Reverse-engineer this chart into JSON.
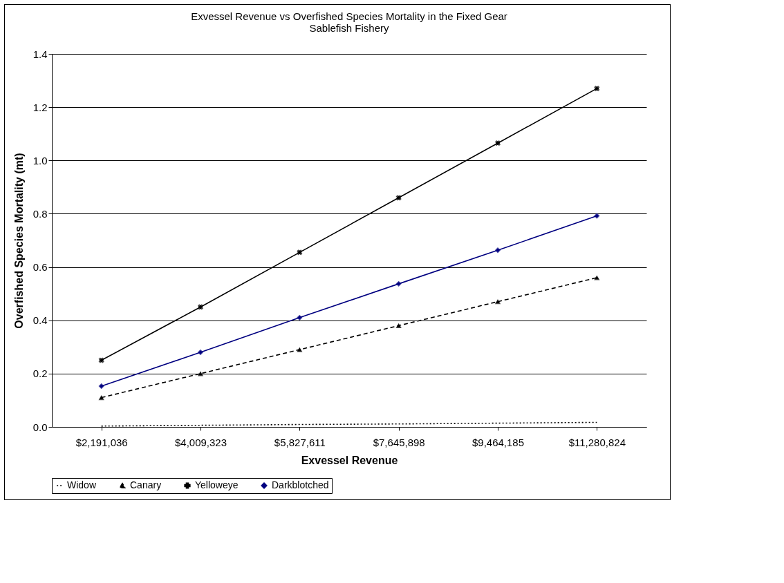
{
  "chart_data": {
    "type": "line",
    "title": "Exvessel Revenue vs Overfished Species Mortality in the Fixed Gear Sablefish Fishery",
    "xlabel": "Exvessel Revenue",
    "ylabel": "Overfished Species Mortality (mt)",
    "categories": [
      "$2,191,036",
      "$4,009,323",
      "$5,827,611",
      "$7,645,898",
      "$9,464,185",
      "$11,280,824"
    ],
    "series": [
      {
        "name": "Widow",
        "color": "#000000",
        "marker": "none",
        "line_style": "dotted",
        "values": [
          0.003,
          0.006,
          0.009,
          0.011,
          0.014,
          0.017
        ]
      },
      {
        "name": "Canary",
        "color": "#000000",
        "marker": "triangle",
        "line_style": "dashed",
        "values": [
          0.11,
          0.2,
          0.29,
          0.38,
          0.47,
          0.56
        ]
      },
      {
        "name": "Yelloweye",
        "color": "#000000",
        "marker": "cross",
        "line_style": "solid",
        "values": [
          0.25,
          0.45,
          0.655,
          0.86,
          1.065,
          1.27
        ]
      },
      {
        "name": "Darkblotched",
        "color": "#000080",
        "marker": "diamond",
        "line_style": "solid",
        "values": [
          0.153,
          0.28,
          0.41,
          0.537,
          0.663,
          0.792
        ]
      }
    ],
    "ylim": [
      0,
      1.4
    ],
    "yticks": [
      {
        "value": 0,
        "label": "0.0"
      },
      {
        "value": 0.2,
        "label": "0.2"
      },
      {
        "value": 0.4,
        "label": "0.4"
      },
      {
        "value": 0.6,
        "label": "0.6"
      },
      {
        "value": 0.8,
        "label": "0.8"
      },
      {
        "value": 1.0,
        "label": "1.0"
      },
      {
        "value": 1.2,
        "label": "1.2"
      },
      {
        "value": 1.4,
        "label": "1.4"
      }
    ],
    "grid": "y",
    "legend": "bottom"
  }
}
